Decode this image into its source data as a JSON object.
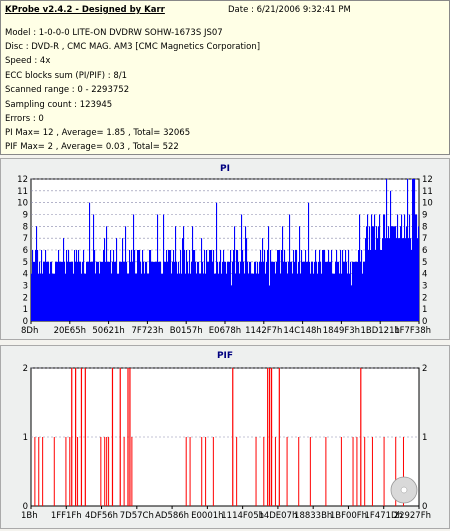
{
  "info": {
    "title": "KProbe v2.4.2 - Designed by Karr",
    "date": "Date : 6/21/2006 9:32:41 PM",
    "lines": [
      "Model : 1-0-0-0 LITE-ON DVDRW SOHW-1673S JS07",
      "Disc : DVD-R , CMC MAG. AM3 [CMC Magnetics Corporation]",
      "Speed : 4x",
      "ECC blocks sum (PI/PIF) : 8/1",
      "Scanned range : 0 - 2293752",
      "Sampling count : 123945",
      "Errors : 0",
      "PI Max= 12 , Average= 1.85 , Total= 32065",
      "PIF Max= 2 , Average= 0.03 , Total= 522"
    ]
  },
  "chart_data": [
    {
      "type": "bar",
      "title": "PI",
      "color": "#0000ff",
      "ylim": [
        0,
        12
      ],
      "yticks": [
        0,
        1,
        2,
        3,
        4,
        5,
        6,
        7,
        8,
        9,
        10,
        11,
        12
      ],
      "xticks": [
        "8Dh",
        "20E65h",
        "50621h",
        "7F723h",
        "B0157h",
        "E0678h",
        "1142F7h",
        "14C148h",
        "1849F3h",
        "1BD121h",
        "1F7F38h"
      ],
      "grid": true,
      "summary": {
        "max": 12,
        "average": 1.85,
        "baseline_band": [
          4,
          6
        ],
        "right_tail_band": [
          6,
          9
        ]
      }
    },
    {
      "type": "bar",
      "title": "PIF",
      "color": "#ff0000",
      "ylim": [
        0,
        2
      ],
      "yticks": [
        0,
        1,
        2
      ],
      "xticks": [
        "1Bh",
        "1FF1Fh",
        "4DF56h",
        "7D57Ch",
        "AD586h",
        "E0001h",
        "1114F05h",
        "14DE07h",
        "18833Bh",
        "1BF00Fh",
        "1F471Dh",
        "22927Fh"
      ],
      "grid": true,
      "summary": {
        "max": 2,
        "average": 0.03
      },
      "spikes_at_2": [
        0.105,
        0.115,
        0.13,
        0.14,
        0.21,
        0.23,
        0.25,
        0.255,
        0.52,
        0.61,
        0.615,
        0.62,
        0.64,
        0.85
      ],
      "spikes_at_1": [
        0.01,
        0.02,
        0.03,
        0.06,
        0.09,
        0.1,
        0.12,
        0.18,
        0.19,
        0.195,
        0.2,
        0.24,
        0.26,
        0.4,
        0.41,
        0.44,
        0.45,
        0.47,
        0.53,
        0.58,
        0.6,
        0.63,
        0.66,
        0.69,
        0.72,
        0.76,
        0.8,
        0.83,
        0.84,
        0.86,
        0.88,
        0.91,
        0.94,
        0.96
      ]
    }
  ]
}
